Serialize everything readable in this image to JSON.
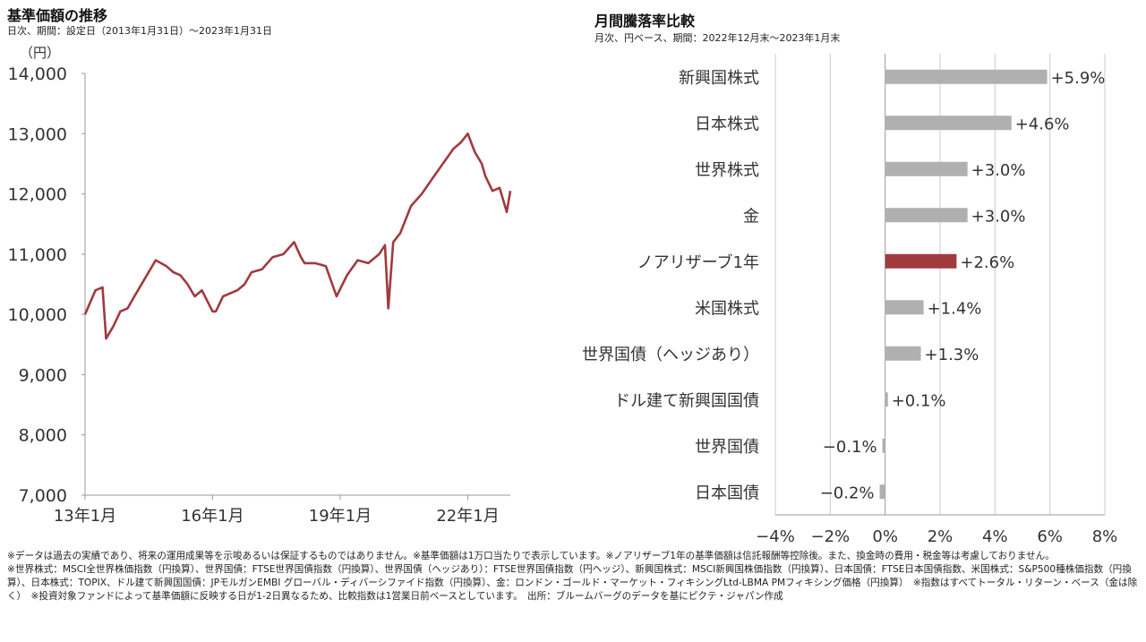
{
  "left": {
    "title": "基準価額の推移",
    "subtitle": "日次、期間：設定日（2013年1月31日）〜2023年1月31日"
  },
  "right": {
    "title": "月間騰落率比較",
    "subtitle": "月次、円ベース、期間：2022年12月末〜2023年1月末"
  },
  "footnotes": {
    "line1": "※データは過去の実績であり、将来の運用成果等を示唆あるいは保証するものではありません。※基準価額は1万口当たりで表示しています。※ノアリザーブ1年の基準価額は信託報酬等控除後。また、換金時の費用・税金等は考慮しておりません。",
    "line2": "※世界株式：MSCI全世界株価指数（円換算）、世界国債：FTSE世界国債指数（円換算）、世界国債（ヘッジあり）：FTSE世界国債指数（円ヘッジ）、新興国株式：MSCI新興国株価指数（円換算）、日本国債：FTSE日本国債指数、米国株式：S&P500種株価指数（円換算）、日本株式：TOPIX、ドル建て新興国国債：JPモルガンEMBI グローバル・ディバーシファイド指数（円換算）、金：ロンドン・ゴールド・マーケット・フィキシングLtd-LBMA PMフィキシング価格（円換算）　※指数はすべてトータル・リターン・ベース（金は除く）　※投資対象ファンドによって基準価額に反映する日が1-2日異なるため、比較指数は1営業日前ベースとしています。　出所：ブルームバーグのデータを基にピクテ・ジャパン作成"
  },
  "colors": {
    "line": "#a03a3f",
    "bar_default": "#b0b0b0",
    "bar_highlight": "#a03a3f",
    "axis": "#999999",
    "grid": "#cccccc"
  },
  "chart_data": [
    {
      "type": "line",
      "name": "基準価額",
      "ylabel": "（円）",
      "ylim": [
        7000,
        14000
      ],
      "yticks": [
        7000,
        8000,
        9000,
        10000,
        11000,
        12000,
        13000,
        14000
      ],
      "ytick_labels": [
        "7,000",
        "8,000",
        "9,000",
        "10,000",
        "11,000",
        "12,000",
        "13,000",
        "14,000"
      ],
      "xlim": [
        "2013-01-31",
        "2023-01-31"
      ],
      "xticks": [
        "2013-01-31",
        "2016-01-31",
        "2019-01-31",
        "2022-01-31"
      ],
      "xtick_labels": [
        "13年1月",
        "16年1月",
        "19年1月",
        "22年1月"
      ],
      "x": [
        "2013-01-31",
        "2013-04-30",
        "2013-06-30",
        "2013-07-31",
        "2013-09-30",
        "2013-11-30",
        "2014-01-31",
        "2014-03-31",
        "2014-06-30",
        "2014-09-30",
        "2014-12-31",
        "2015-02-28",
        "2015-04-30",
        "2015-06-30",
        "2015-08-31",
        "2015-10-31",
        "2016-01-31",
        "2016-02-28",
        "2016-04-30",
        "2016-06-30",
        "2016-08-31",
        "2016-10-31",
        "2016-12-31",
        "2017-03-31",
        "2017-06-30",
        "2017-09-30",
        "2017-12-31",
        "2018-02-28",
        "2018-03-31",
        "2018-06-30",
        "2018-09-30",
        "2018-12-31",
        "2019-03-31",
        "2019-06-30",
        "2019-09-30",
        "2019-12-31",
        "2020-02-20",
        "2020-03-19",
        "2020-04-30",
        "2020-06-30",
        "2020-09-30",
        "2020-12-31",
        "2021-03-31",
        "2021-06-30",
        "2021-09-30",
        "2021-11-30",
        "2022-01-31",
        "2022-03-31",
        "2022-05-31",
        "2022-06-30",
        "2022-08-31",
        "2022-10-31",
        "2022-12-31",
        "2023-01-31"
      ],
      "values": [
        10000,
        10400,
        10450,
        9600,
        9800,
        10050,
        10100,
        10300,
        10600,
        10900,
        10800,
        10700,
        10650,
        10500,
        10300,
        10400,
        10050,
        10050,
        10300,
        10350,
        10400,
        10500,
        10700,
        10750,
        10950,
        11000,
        11200,
        10950,
        10850,
        10850,
        10800,
        10300,
        10650,
        10900,
        10850,
        11000,
        11150,
        10100,
        11200,
        11350,
        11800,
        12000,
        12250,
        12500,
        12750,
        12850,
        13000,
        12700,
        12500,
        12300,
        12050,
        12100,
        11700,
        12050
      ]
    },
    {
      "type": "bar",
      "orientation": "horizontal",
      "categories": [
        "新興国株式",
        "日本株式",
        "世界株式",
        "金",
        "ノアリザーブ1年",
        "米国株式",
        "世界国債（ヘッジあり）",
        "ドル建て新興国国債",
        "世界国債",
        "日本国債"
      ],
      "values": [
        5.9,
        4.6,
        3.0,
        3.0,
        2.6,
        1.4,
        1.3,
        0.1,
        -0.1,
        -0.2
      ],
      "value_labels": [
        "+5.9%",
        "+4.6%",
        "+3.0%",
        "+3.0%",
        "+2.6%",
        "+1.4%",
        "+1.3%",
        "+0.1%",
        "−0.1%",
        "−0.2%"
      ],
      "highlight": "ノアリザーブ1年",
      "xlim": [
        -4,
        8
      ],
      "xticks": [
        -4,
        -2,
        0,
        2,
        4,
        6,
        8
      ],
      "xtick_labels": [
        "−4%",
        "−2%",
        "0%",
        "2%",
        "4%",
        "6%",
        "8%"
      ]
    }
  ]
}
